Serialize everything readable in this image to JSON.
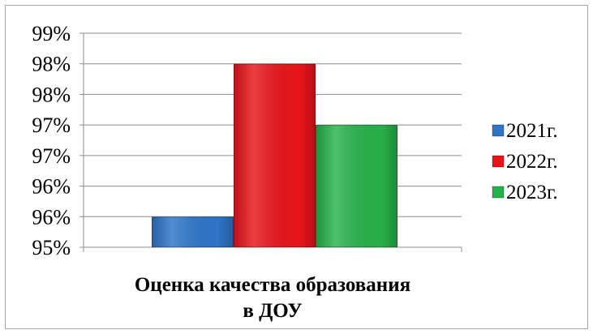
{
  "chart_data": {
    "type": "bar",
    "categories": [
      "Оценка качества образования в ДОУ"
    ],
    "category_lines": [
      "Оценка качества образования",
      "в ДОУ"
    ],
    "series": [
      {
        "name": "2021г.",
        "values": [
          95.5
        ],
        "color": "#2e75c8"
      },
      {
        "name": "2022г.",
        "values": [
          98.0
        ],
        "color": "#e8141a"
      },
      {
        "name": "2023г.",
        "values": [
          97.0
        ],
        "color": "#27b14a"
      }
    ],
    "yticks": [
      "95%",
      "96%",
      "96%",
      "97%",
      "97%",
      "98%",
      "98%",
      "99%"
    ],
    "ylim": [
      95,
      98.5
    ],
    "ytick_step": 0.5,
    "grid": true,
    "legend_position": "right",
    "title": "",
    "xlabel": "",
    "ylabel": ""
  }
}
